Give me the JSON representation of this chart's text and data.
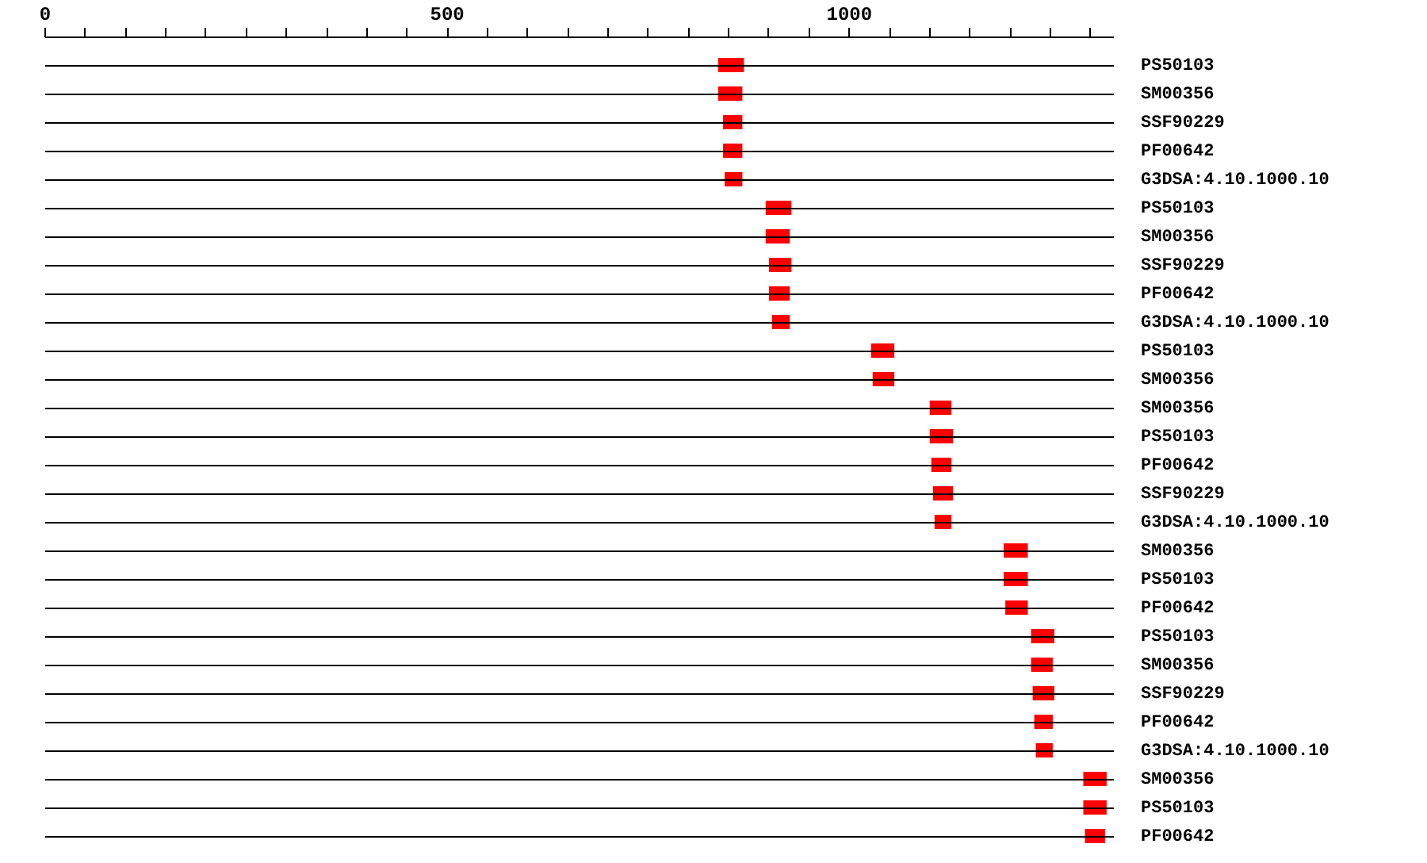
{
  "chart_data": {
    "type": "bar",
    "orientation": "horizontal",
    "grid": "y",
    "categories": [
      "PS50103",
      "SM00356",
      "SSF90229",
      "PF00642",
      "G3DSA:4.10.1000.10",
      "PS50103",
      "SM00356",
      "SSF90229",
      "PF00642",
      "G3DSA:4.10.1000.10",
      "PS50103",
      "SM00356",
      "SM00356",
      "PS50103",
      "PF00642",
      "SSF90229",
      "G3DSA:4.10.1000.10",
      "SM00356",
      "PS50103",
      "PF00642",
      "PS50103",
      "SM00356",
      "SSF90229",
      "PF00642",
      "G3DSA:4.10.1000.10",
      "SM00356",
      "PS50103",
      "PF00642"
    ],
    "series": [
      {
        "color": "#ff0000",
        "base": [
          838,
          838,
          844,
          844,
          846,
          897,
          897,
          901,
          901,
          905,
          1028,
          1030,
          1101,
          1101,
          1103,
          1105,
          1107,
          1193,
          1193,
          1195,
          1227,
          1227,
          1229,
          1231,
          1233,
          1292,
          1292,
          1294
        ],
        "values": [
          32,
          30,
          24,
          24,
          22,
          32,
          30,
          28,
          26,
          22,
          29,
          27,
          27,
          29,
          25,
          25,
          21,
          30,
          30,
          28,
          29,
          27,
          27,
          23,
          21,
          29,
          29,
          25
        ]
      }
    ],
    "xlim": [
      0,
      1329
    ],
    "xticks": [
      0,
      {
        "value": 50,
        "label": null
      },
      {
        "value": 100,
        "label": null
      },
      {
        "value": 150,
        "label": null
      },
      {
        "value": 200,
        "label": null
      },
      {
        "value": 250,
        "label": null
      },
      {
        "value": 300,
        "label": null
      },
      {
        "value": 350,
        "label": null
      },
      {
        "value": 400,
        "label": null
      },
      {
        "value": 450,
        "label": null
      },
      500,
      {
        "value": 550,
        "label": null
      },
      {
        "value": 600,
        "label": null
      },
      {
        "value": 650,
        "label": null
      },
      {
        "value": 700,
        "label": null
      },
      {
        "value": 750,
        "label": null
      },
      {
        "value": 800,
        "label": null
      },
      {
        "value": 850,
        "label": null
      },
      {
        "value": 900,
        "label": null
      },
      {
        "value": 950,
        "label": null
      },
      1000,
      {
        "value": 1050,
        "label": null
      },
      {
        "value": 1100,
        "label": null
      },
      {
        "value": 1150,
        "label": null
      },
      {
        "value": 1200,
        "label": null
      },
      {
        "value": 1250,
        "label": null
      },
      {
        "value": 1300,
        "label": null
      }
    ]
  }
}
